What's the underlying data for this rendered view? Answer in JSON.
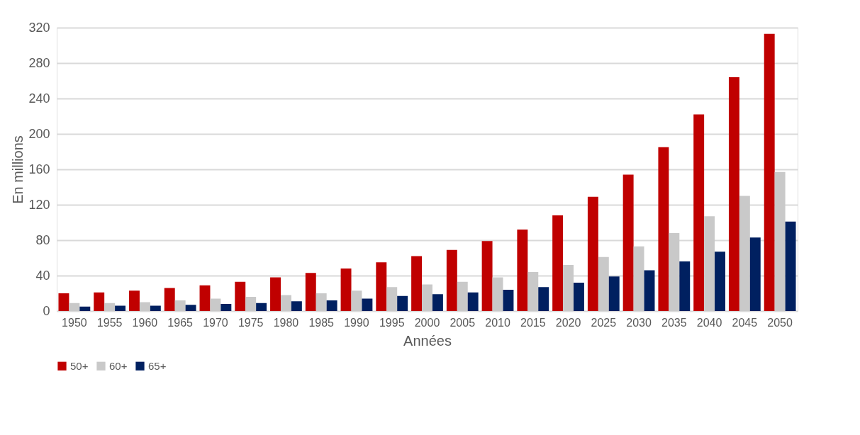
{
  "chart_data": {
    "type": "bar",
    "xlabel": "Années",
    "ylabel": "En millions",
    "categories": [
      "1950",
      "1955",
      "1960",
      "1965",
      "1970",
      "1975",
      "1980",
      "1985",
      "1990",
      "1995",
      "2000",
      "2005",
      "2010",
      "2015",
      "2020",
      "2025",
      "2030",
      "2035",
      "2040",
      "2045",
      "2050"
    ],
    "series": [
      {
        "name": "50+",
        "color": "#c00000",
        "values": [
          20,
          21,
          23,
          26,
          29,
          33,
          38,
          43,
          48,
          55,
          62,
          69,
          79,
          92,
          108,
          129,
          154,
          185,
          222,
          264,
          313
        ]
      },
      {
        "name": "60+",
        "color": "#c9c9c9",
        "values": [
          9,
          9,
          10,
          12,
          14,
          16,
          18,
          20,
          23,
          27,
          30,
          33,
          38,
          44,
          52,
          61,
          73,
          88,
          107,
          130,
          157
        ]
      },
      {
        "name": "65+",
        "color": "#002060",
        "values": [
          5,
          6,
          6,
          7,
          8,
          9,
          11,
          12,
          14,
          17,
          19,
          21,
          24,
          27,
          32,
          39,
          46,
          56,
          67,
          83,
          101
        ]
      }
    ],
    "ylim": [
      0,
      320
    ],
    "yticks": [
      0,
      40,
      80,
      120,
      160,
      200,
      240,
      280,
      320
    ],
    "grid": "y",
    "legend": "bottom"
  }
}
